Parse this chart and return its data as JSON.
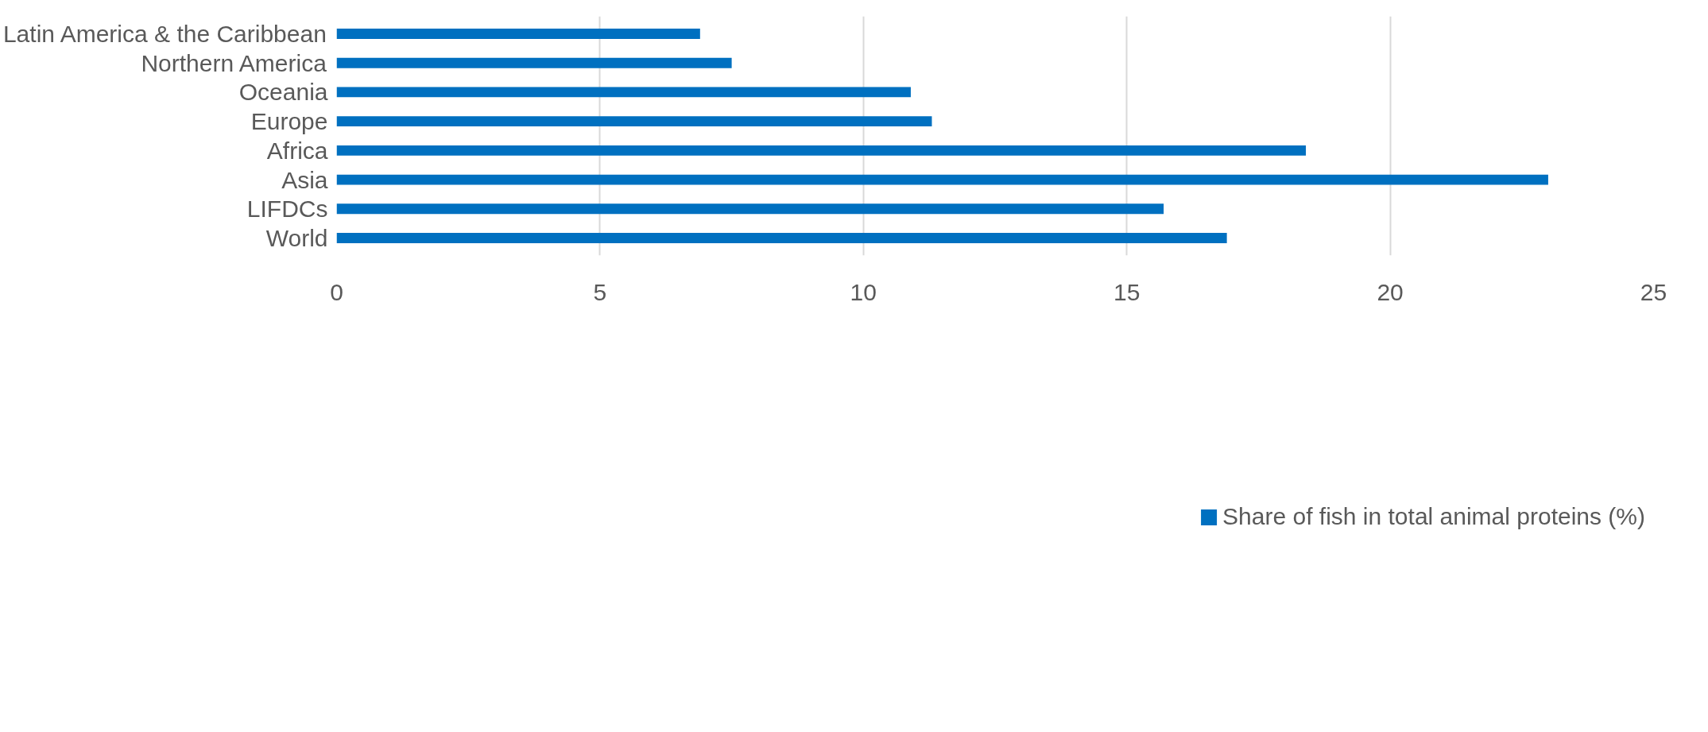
{
  "chart_data": {
    "type": "bar",
    "orientation": "horizontal",
    "categories": [
      "Latin America & the Caribbean",
      "Northern America",
      "Oceania",
      "Europe",
      "Africa",
      "Asia",
      "LIFDCs",
      "World"
    ],
    "series": [
      {
        "name": "Share of fish in total animal proteins (%)",
        "color": "#0070c0",
        "values": [
          6.9,
          7.5,
          10.9,
          11.3,
          18.4,
          23.0,
          15.7,
          16.9
        ]
      }
    ],
    "xlim": [
      0,
      25
    ],
    "xticks": [
      0,
      5,
      10,
      15,
      20,
      25
    ],
    "grid": "x",
    "legend": "bottom"
  }
}
